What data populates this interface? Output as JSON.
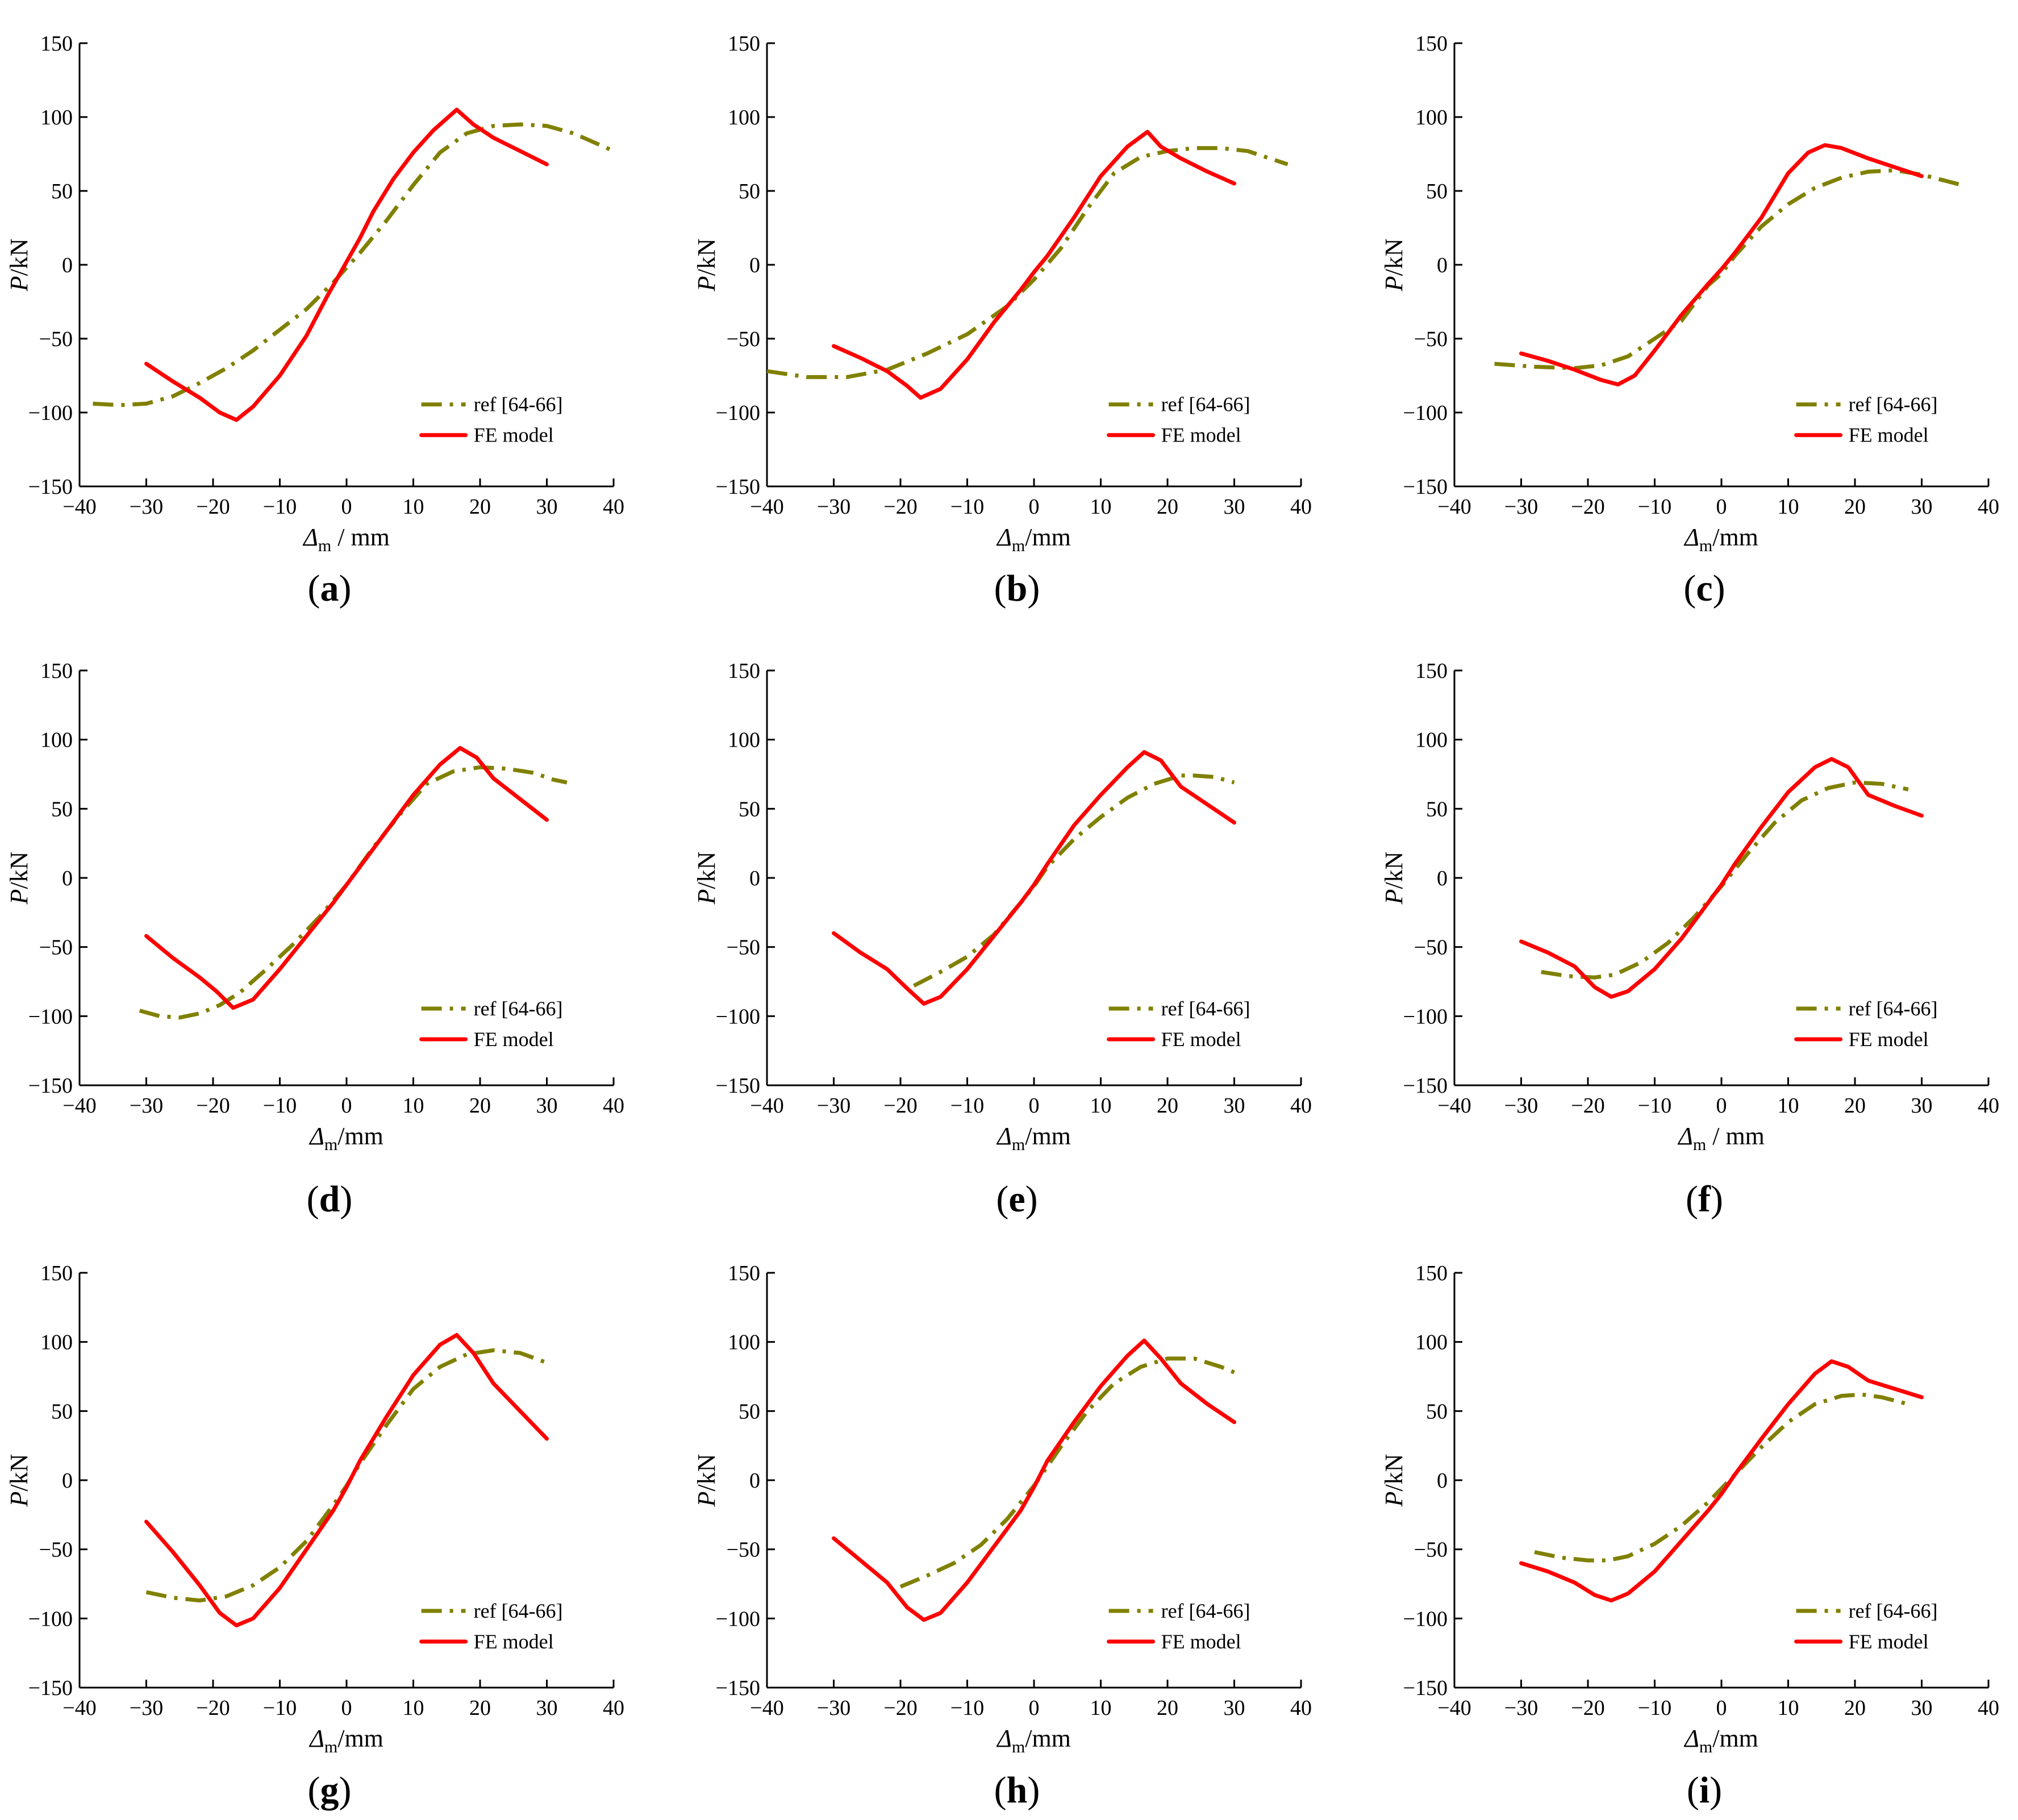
{
  "colors": {
    "ref": "#808000",
    "fe": "#ff0000",
    "axis": "#000000"
  },
  "chart_data": [
    {
      "panel": "a",
      "type": "line",
      "xlabel": "Δm / mm",
      "xlabel_main": "Δ",
      "xlabel_sub": "m",
      "xlabel_unit": " / mm",
      "ylabel_italic": "P",
      "ylabel_unit": "/kN",
      "xlim": [
        -40,
        40
      ],
      "ylim": [
        -150,
        150
      ],
      "xticks": [
        -40,
        -30,
        -20,
        -10,
        0,
        10,
        20,
        30,
        40
      ],
      "yticks": [
        -150,
        -100,
        -50,
        0,
        50,
        100,
        150
      ],
      "legend": [
        "ref [64-66]",
        "FE model"
      ],
      "legend_position": "lower-right",
      "series": [
        {
          "name": "ref [64-66]",
          "style": "dash-dot",
          "x": [
            -38,
            -34,
            -30,
            -26,
            -22,
            -18,
            -14,
            -10,
            -6,
            -2,
            0,
            2,
            6,
            10,
            14,
            18,
            22,
            26,
            30,
            34,
            40
          ],
          "y": [
            -94,
            -95,
            -94,
            -89,
            -80,
            -70,
            -58,
            -44,
            -30,
            -12,
            -2,
            8,
            30,
            54,
            76,
            89,
            94,
            95,
            94,
            89,
            77
          ]
        },
        {
          "name": "FE model",
          "style": "solid",
          "x": [
            -30,
            -26,
            -22,
            -19,
            -16.5,
            -14,
            -10,
            -6,
            -3,
            -1,
            0,
            2,
            4,
            7,
            10,
            13,
            16.5,
            19,
            22,
            26,
            30
          ],
          "y": [
            -67,
            -79,
            -90,
            -100,
            -105,
            -96,
            -75,
            -48,
            -22,
            -6,
            2,
            18,
            36,
            58,
            76,
            91,
            105,
            95,
            86,
            77,
            68
          ]
        }
      ]
    },
    {
      "panel": "b",
      "type": "line",
      "xlabel": "Δm/mm",
      "xlabel_main": "Δ",
      "xlabel_sub": "m",
      "xlabel_unit": "/mm",
      "ylabel_italic": "P",
      "ylabel_unit": "/kN",
      "xlim": [
        -40,
        40
      ],
      "ylim": [
        -150,
        150
      ],
      "xticks": [
        -40,
        -30,
        -20,
        -10,
        0,
        10,
        20,
        30,
        40
      ],
      "yticks": [
        -150,
        -100,
        -50,
        0,
        50,
        100,
        150
      ],
      "legend": [
        "ref [64-66]",
        "FE model"
      ],
      "legend_position": "lower-right",
      "series": [
        {
          "name": "ref [64-66]",
          "style": "dash-dot",
          "x": [
            -40,
            -34,
            -28,
            -22,
            -16,
            -10,
            -4,
            0,
            4,
            8,
            12,
            16,
            20,
            24,
            28,
            32,
            38
          ],
          "y": [
            -72,
            -76,
            -76,
            -71,
            -60,
            -47,
            -28,
            -10,
            11,
            38,
            62,
            73,
            77,
            79,
            79,
            77,
            68
          ]
        },
        {
          "name": "FE model",
          "style": "solid",
          "x": [
            -30,
            -26,
            -22,
            -19,
            -17,
            -14,
            -10,
            -6,
            -2,
            0,
            2,
            6,
            10,
            14,
            17,
            19,
            22,
            26,
            30
          ],
          "y": [
            -55,
            -63,
            -72,
            -82,
            -90,
            -84,
            -64,
            -39,
            -17,
            -5,
            6,
            32,
            60,
            80,
            90,
            80,
            72,
            63,
            55
          ]
        }
      ]
    },
    {
      "panel": "c",
      "type": "line",
      "xlabel": "Δm/mm",
      "xlabel_main": "Δ",
      "xlabel_sub": "m",
      "xlabel_unit": "/mm",
      "ylabel_italic": "P",
      "ylabel_unit": "/kN",
      "xlim": [
        -40,
        40
      ],
      "ylim": [
        -150,
        150
      ],
      "xticks": [
        -40,
        -30,
        -20,
        -10,
        0,
        10,
        20,
        30,
        40
      ],
      "yticks": [
        -150,
        -100,
        -50,
        0,
        50,
        100,
        150
      ],
      "legend": [
        "ref [64-66]",
        "FE model"
      ],
      "legend_position": "lower-right",
      "series": [
        {
          "name": "ref [64-66]",
          "style": "dash-dot",
          "x": [
            -34,
            -28,
            -22,
            -18,
            -14,
            -10,
            -6,
            -2,
            0,
            2,
            6,
            10,
            14,
            18,
            22,
            26,
            30,
            36
          ],
          "y": [
            -67,
            -69,
            -70,
            -68,
            -62,
            -50,
            -38,
            -14,
            -6,
            6,
            26,
            41,
            52,
            59,
            63,
            64,
            61,
            54
          ]
        },
        {
          "name": "FE model",
          "style": "solid",
          "x": [
            -30,
            -26,
            -22,
            -18,
            -15.5,
            -13,
            -10,
            -6,
            -2,
            0,
            2,
            6,
            10,
            13,
            15.5,
            18,
            22,
            26,
            30
          ],
          "y": [
            -60,
            -65,
            -71,
            -78,
            -81,
            -75,
            -58,
            -34,
            -13,
            -3,
            8,
            32,
            62,
            76,
            81,
            79,
            72,
            66,
            60
          ]
        }
      ]
    },
    {
      "panel": "d",
      "type": "line",
      "xlabel": "Δm/mm",
      "xlabel_main": "Δ",
      "xlabel_sub": "m",
      "xlabel_unit": "/mm",
      "ylabel_italic": "P",
      "ylabel_unit": "/kN",
      "xlim": [
        -40,
        40
      ],
      "ylim": [
        -150,
        150
      ],
      "xticks": [
        -40,
        -30,
        -20,
        -10,
        0,
        10,
        20,
        30,
        40
      ],
      "yticks": [
        -150,
        -100,
        -50,
        0,
        50,
        100,
        150
      ],
      "legend": [
        "ref [64-66]",
        "FE model"
      ],
      "legend_position": "lower-right",
      "series": [
        {
          "name": "ref [64-66]",
          "style": "dash-dot",
          "x": [
            -31,
            -28,
            -25,
            -22,
            -19,
            -16,
            -12,
            -8,
            -4,
            0,
            4,
            8,
            12,
            16,
            20,
            24,
            28,
            31,
            33
          ],
          "y": [
            -96,
            -100,
            -101,
            -98,
            -92,
            -83,
            -66,
            -48,
            -28,
            -5,
            22,
            46,
            68,
            77,
            80,
            79,
            76,
            71,
            69
          ]
        },
        {
          "name": "FE model",
          "style": "solid",
          "x": [
            -30,
            -26,
            -22,
            -19.5,
            -17,
            -14,
            -10,
            -6,
            -2,
            0,
            2,
            6,
            10,
            14,
            17,
            19.5,
            22,
            26,
            30
          ],
          "y": [
            -42,
            -58,
            -72,
            -82,
            -94,
            -88,
            -66,
            -42,
            -18,
            -5,
            8,
            34,
            60,
            82,
            94,
            87,
            72,
            57,
            42
          ]
        }
      ]
    },
    {
      "panel": "e",
      "type": "line",
      "xlabel": "Δm/mm",
      "xlabel_main": "Δ",
      "xlabel_sub": "m",
      "xlabel_unit": "/mm",
      "ylabel_italic": "P",
      "ylabel_unit": "/kN",
      "xlim": [
        -40,
        40
      ],
      "ylim": [
        -150,
        150
      ],
      "xticks": [
        -40,
        -30,
        -20,
        -10,
        0,
        10,
        20,
        30,
        40
      ],
      "yticks": [
        -150,
        -100,
        -50,
        0,
        50,
        100,
        150
      ],
      "legend": [
        "ref [64-66]",
        "FE model"
      ],
      "legend_position": "lower-right",
      "series": [
        {
          "name": "ref [64-66]",
          "style": "dash-dot",
          "x": [
            -18,
            -14,
            -10,
            -6,
            -2,
            0,
            2,
            6,
            10,
            14,
            18,
            22,
            24,
            27,
            30
          ],
          "y": [
            -78,
            -68,
            -57,
            -41,
            -18,
            -6,
            8,
            28,
            44,
            58,
            68,
            74,
            74,
            73,
            69
          ]
        },
        {
          "name": "FE model",
          "style": "solid",
          "x": [
            -30,
            -26,
            -22,
            -19,
            -16.5,
            -14,
            -10,
            -6,
            -2,
            0,
            2,
            6,
            10,
            14,
            16.5,
            19,
            22,
            26,
            30
          ],
          "y": [
            -40,
            -54,
            -66,
            -80,
            -91,
            -86,
            -66,
            -42,
            -18,
            -5,
            10,
            38,
            60,
            80,
            91,
            85,
            66,
            53,
            40
          ]
        }
      ]
    },
    {
      "panel": "f",
      "type": "line",
      "xlabel": "Δm / mm",
      "xlabel_main": "Δ",
      "xlabel_sub": "m",
      "xlabel_unit": " / mm",
      "ylabel_italic": "P",
      "ylabel_unit": "/kN",
      "xlim": [
        -40,
        40
      ],
      "ylim": [
        -150,
        150
      ],
      "xticks": [
        -40,
        -30,
        -20,
        -10,
        0,
        10,
        20,
        30,
        40
      ],
      "yticks": [
        -150,
        -100,
        -50,
        0,
        50,
        100,
        150
      ],
      "legend": [
        "ref [64-66]",
        "FE model"
      ],
      "legend_position": "lower-right",
      "series": [
        {
          "name": "ref [64-66]",
          "style": "dash-dot",
          "x": [
            -27,
            -23,
            -19,
            -16,
            -12,
            -8,
            -4,
            0,
            4,
            8,
            12,
            16,
            20,
            24,
            28
          ],
          "y": [
            -68,
            -71,
            -72,
            -70,
            -61,
            -47,
            -28,
            -6,
            18,
            40,
            56,
            65,
            69,
            68,
            64
          ]
        },
        {
          "name": "FE model",
          "style": "solid",
          "x": [
            -30,
            -26,
            -22,
            -19,
            -16.5,
            -14,
            -10,
            -6,
            -2,
            0,
            2,
            6,
            10,
            14,
            16.5,
            19,
            22,
            26,
            30
          ],
          "y": [
            -46,
            -54,
            -64,
            -79,
            -86,
            -82,
            -66,
            -44,
            -18,
            -5,
            10,
            37,
            62,
            80,
            86,
            80,
            60,
            52,
            45
          ]
        }
      ]
    },
    {
      "panel": "g",
      "type": "line",
      "xlabel": "Δm/mm",
      "xlabel_main": "Δ",
      "xlabel_sub": "m",
      "xlabel_unit": "/mm",
      "ylabel_italic": "P",
      "ylabel_unit": "/kN",
      "xlim": [
        -40,
        40
      ],
      "ylim": [
        -150,
        150
      ],
      "xticks": [
        -40,
        -30,
        -20,
        -10,
        0,
        10,
        20,
        30,
        40
      ],
      "yticks": [
        -150,
        -100,
        -50,
        0,
        50,
        100,
        150
      ],
      "legend": [
        "ref [64-66]",
        "FE model"
      ],
      "legend_position": "lower-right",
      "series": [
        {
          "name": "ref [64-66]",
          "style": "dash-dot",
          "x": [
            -30,
            -26,
            -22,
            -18,
            -14,
            -10,
            -6,
            -2,
            0,
            2,
            6,
            10,
            14,
            18,
            22,
            26,
            30
          ],
          "y": [
            -81,
            -85,
            -87,
            -84,
            -76,
            -63,
            -44,
            -18,
            -4,
            12,
            40,
            66,
            82,
            91,
            94,
            92,
            85
          ]
        },
        {
          "name": "FE model",
          "style": "solid",
          "x": [
            -30,
            -26,
            -22,
            -19,
            -16.5,
            -14,
            -10,
            -6,
            -2,
            0,
            2,
            6,
            10,
            14,
            16.5,
            19,
            22,
            26,
            30
          ],
          "y": [
            -30,
            -52,
            -76,
            -96,
            -105,
            -100,
            -78,
            -50,
            -22,
            -5,
            14,
            46,
            76,
            98,
            105,
            92,
            70,
            50,
            30
          ]
        }
      ]
    },
    {
      "panel": "h",
      "type": "line",
      "xlabel": "Δm/mm",
      "xlabel_main": "Δ",
      "xlabel_sub": "m",
      "xlabel_unit": "/mm",
      "ylabel_italic": "P",
      "ylabel_unit": "/kN",
      "xlim": [
        -40,
        40
      ],
      "ylim": [
        -150,
        150
      ],
      "xticks": [
        -40,
        -30,
        -20,
        -10,
        0,
        10,
        20,
        30,
        40
      ],
      "yticks": [
        -150,
        -100,
        -50,
        0,
        50,
        100,
        150
      ],
      "legend": [
        "ref [64-66]",
        "FE model"
      ],
      "legend_position": "lower-right",
      "series": [
        {
          "name": "ref [64-66]",
          "style": "dash-dot",
          "x": [
            -20,
            -16,
            -12,
            -8,
            -4,
            0,
            4,
            8,
            12,
            16,
            20,
            24,
            28,
            30
          ],
          "y": [
            -77,
            -69,
            -60,
            -47,
            -28,
            -4,
            24,
            50,
            70,
            82,
            88,
            88,
            82,
            78
          ]
        },
        {
          "name": "FE model",
          "style": "solid",
          "x": [
            -30,
            -26,
            -22,
            -19,
            -16.5,
            -14,
            -10,
            -6,
            -2,
            0,
            2,
            6,
            10,
            14,
            16.5,
            19,
            22,
            26,
            30
          ],
          "y": [
            -42,
            -58,
            -74,
            -92,
            -101,
            -96,
            -74,
            -48,
            -22,
            -5,
            14,
            42,
            68,
            90,
            101,
            88,
            70,
            55,
            42
          ]
        }
      ]
    },
    {
      "panel": "i",
      "type": "line",
      "xlabel": "Δm/mm",
      "xlabel_main": "Δ",
      "xlabel_sub": "m",
      "xlabel_unit": "/mm",
      "ylabel_italic": "P",
      "ylabel_unit": "/kN",
      "xlim": [
        -40,
        40
      ],
      "ylim": [
        -150,
        150
      ],
      "xticks": [
        -40,
        -30,
        -20,
        -10,
        0,
        10,
        20,
        30,
        40
      ],
      "yticks": [
        -150,
        -100,
        -50,
        0,
        50,
        100,
        150
      ],
      "legend": [
        "ref [64-66]",
        "FE model"
      ],
      "legend_position": "lower-right",
      "series": [
        {
          "name": "ref [64-66]",
          "style": "dash-dot",
          "x": [
            -28,
            -24,
            -20,
            -17,
            -14,
            -10,
            -6,
            -2,
            0,
            2,
            6,
            10,
            14,
            18,
            21,
            24,
            28
          ],
          "y": [
            -52,
            -56,
            -58,
            -58,
            -55,
            -46,
            -33,
            -16,
            -6,
            4,
            24,
            42,
            55,
            61,
            62,
            60,
            55
          ]
        },
        {
          "name": "FE model",
          "style": "solid",
          "x": [
            -30,
            -26,
            -22,
            -19,
            -16.5,
            -14,
            -10,
            -6,
            -2,
            0,
            2,
            6,
            10,
            14,
            16.5,
            19,
            22,
            26,
            30
          ],
          "y": [
            -60,
            -66,
            -74,
            -83,
            -87,
            -82,
            -66,
            -44,
            -22,
            -10,
            4,
            30,
            55,
            77,
            86,
            82,
            72,
            66,
            60
          ]
        }
      ]
    }
  ]
}
